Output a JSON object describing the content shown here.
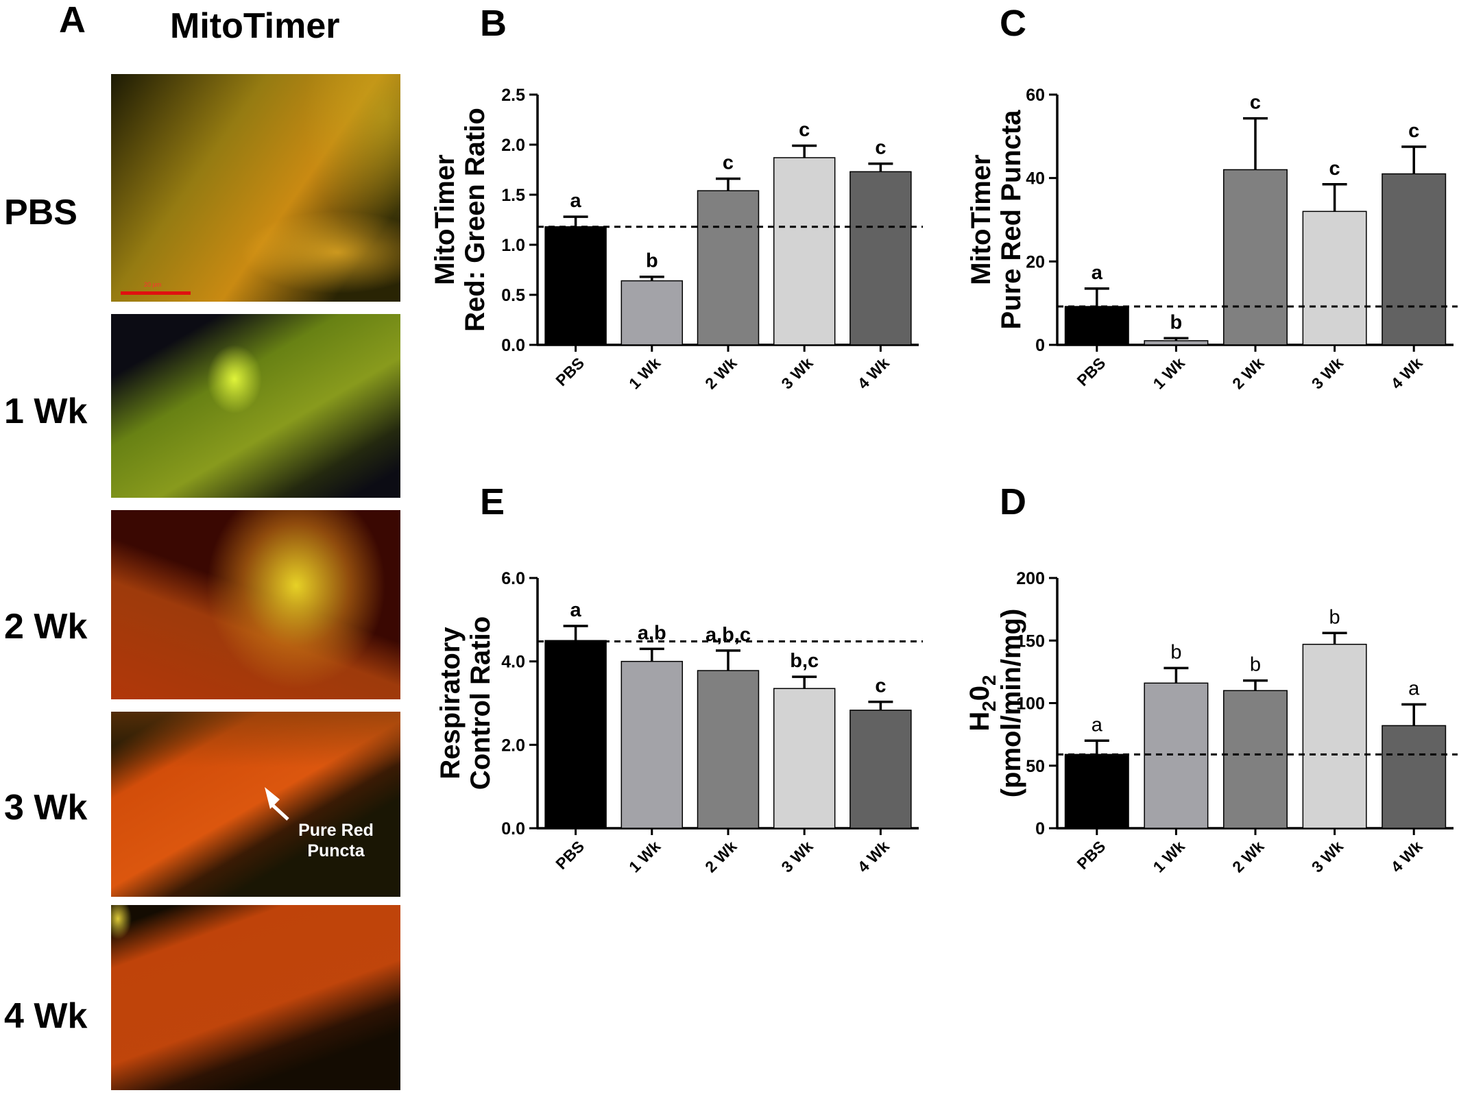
{
  "panel_A": {
    "letter": "A",
    "title": "MitoTimer",
    "rows": [
      "PBS",
      "1 Wk",
      "2 Wk",
      "3 Wk",
      "4 Wk"
    ],
    "scale_bar_label": "20 µm",
    "annotation": [
      "Pure Red",
      "Puncta"
    ]
  },
  "chart_data": [
    {
      "id": "B",
      "letter": "B",
      "type": "bar",
      "categories": [
        "PBS",
        "1 Wk",
        "2 Wk",
        "3 Wk",
        "4 Wk"
      ],
      "values": [
        1.18,
        0.64,
        1.54,
        1.87,
        1.73
      ],
      "errors": [
        0.1,
        0.04,
        0.12,
        0.12,
        0.08
      ],
      "sig_labels": [
        "a",
        "b",
        "c",
        "c",
        "c"
      ],
      "ylabel": [
        "MitoTimer",
        "Red: Green Ratio"
      ],
      "ylim": [
        0,
        2.5
      ],
      "yticks": [
        "0.0",
        "0.5",
        "1.0",
        "1.5",
        "2.0",
        "2.5"
      ],
      "baseline": 1.18,
      "colors": [
        "#000000",
        "#a3a3a8",
        "#808080",
        "#d3d3d3",
        "#626262"
      ],
      "grid": false
    },
    {
      "id": "C",
      "letter": "C",
      "type": "bar",
      "categories": [
        "PBS",
        "1 Wk",
        "2 Wk",
        "3 Wk",
        "4 Wk"
      ],
      "values": [
        9.2,
        1.0,
        42,
        32,
        41
      ],
      "errors": [
        4.3,
        0.6,
        12.3,
        6.5,
        6.5
      ],
      "sig_labels": [
        "a",
        "b",
        "c",
        "c",
        "c"
      ],
      "ylabel": [
        "MitoTimer",
        "Pure Red Puncta"
      ],
      "ylim": [
        0,
        60
      ],
      "yticks": [
        "0",
        "20",
        "40",
        "60"
      ],
      "baseline": 9.2,
      "colors": [
        "#000000",
        "#a3a3a8",
        "#808080",
        "#d3d3d3",
        "#626262"
      ],
      "grid": false
    },
    {
      "id": "E",
      "letter": "E",
      "type": "bar",
      "categories": [
        "PBS",
        "1 Wk",
        "2 Wk",
        "3 Wk",
        "4 Wk"
      ],
      "values": [
        4.5,
        4.0,
        3.78,
        3.35,
        2.83
      ],
      "errors": [
        0.35,
        0.3,
        0.48,
        0.28,
        0.2
      ],
      "sig_labels": [
        "a",
        "a,b",
        "a,b,c",
        "b,c",
        "c"
      ],
      "ylabel": [
        "Respiratory",
        "Control Ratio"
      ],
      "ylim": [
        0,
        6.0
      ],
      "yticks": [
        "0.0",
        "2.0",
        "4.0",
        "6.0"
      ],
      "baseline": 4.48,
      "colors": [
        "#000000",
        "#a3a3a8",
        "#808080",
        "#d3d3d3",
        "#626262"
      ],
      "grid": false
    },
    {
      "id": "D",
      "letter": "D",
      "type": "bar",
      "categories": [
        "PBS",
        "1 Wk",
        "2 Wk",
        "3 Wk",
        "4 Wk"
      ],
      "values": [
        59,
        116,
        110,
        147,
        82
      ],
      "errors": [
        11,
        12,
        8,
        9,
        17
      ],
      "sig_labels": [
        "a",
        "b",
        "b",
        "b",
        "a"
      ],
      "ylabel": [
        "H202",
        "(pmol/min/mg)"
      ],
      "ylim": [
        0,
        200
      ],
      "yticks": [
        "0",
        "50",
        "100",
        "150",
        "200"
      ],
      "baseline": 59,
      "colors": [
        "#000000",
        "#a3a3a8",
        "#808080",
        "#d3d3d3",
        "#626262"
      ],
      "grid": false
    }
  ]
}
